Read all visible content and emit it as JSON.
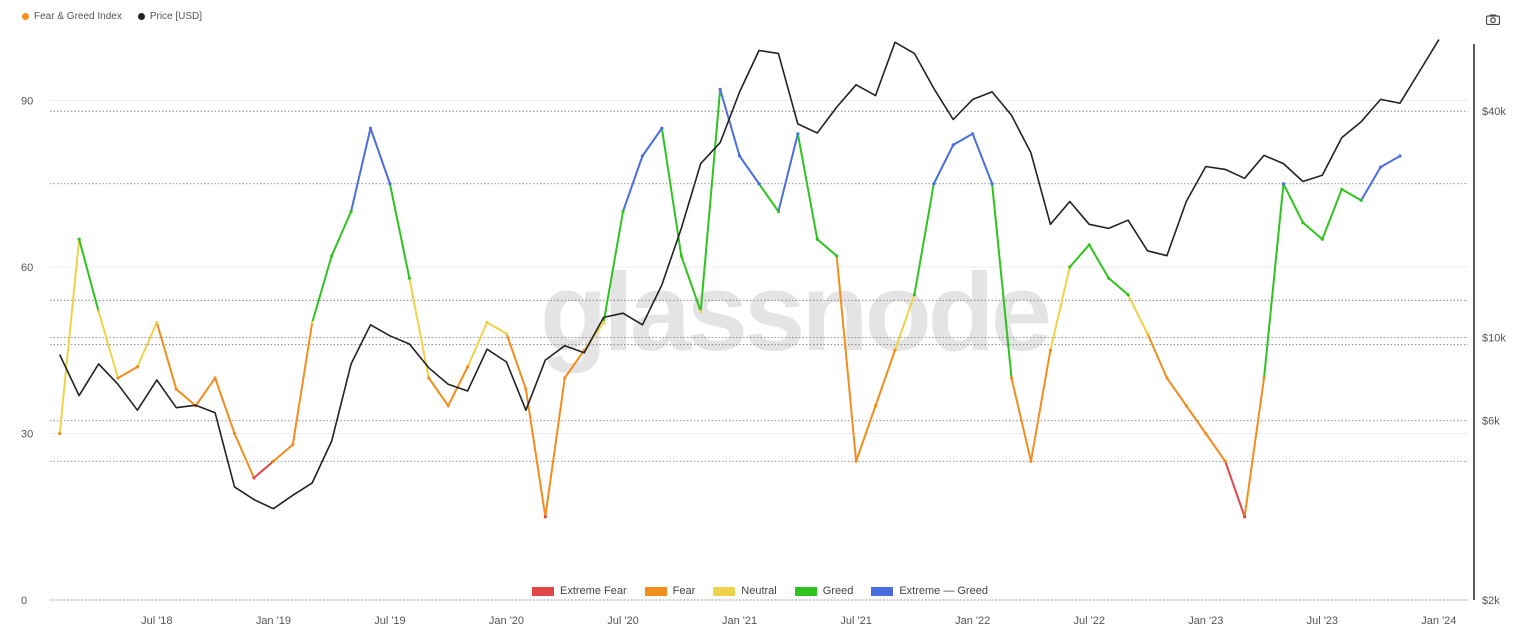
{
  "legend_top": [
    {
      "label": "Fear & Greed Index",
      "color": "#f28d1e"
    },
    {
      "label": "Price [USD]",
      "color": "#222222"
    }
  ],
  "legend_bottom": [
    {
      "label": "Extreme Fear",
      "color": "#e04848"
    },
    {
      "label": "Fear",
      "color": "#f28d1e"
    },
    {
      "label": "Neutral",
      "color": "#f0d24a"
    },
    {
      "label": "Greed",
      "color": "#2ec41f"
    },
    {
      "label": "Extreme — Greed",
      "color": "#4a6ee0"
    }
  ],
  "watermark": "glassnode",
  "chart_data": {
    "type": "line",
    "x_tick_labels": [
      "Jul '18",
      "Jan '19",
      "Jul '19",
      "Jan '20",
      "Jul '20",
      "Jan '21",
      "Jul '21",
      "Jan '22",
      "Jul '22",
      "Jan '23",
      "Jul '23",
      "Jan '24"
    ],
    "left_axis": {
      "ticks": [
        0,
        30,
        60,
        90
      ],
      "range": [
        0,
        100
      ]
    },
    "right_axis": {
      "scale": "log",
      "tick_labels": [
        "$2k",
        "$6k",
        "$10k",
        "$40k"
      ],
      "tick_values": [
        2000,
        6000,
        10000,
        40000
      ],
      "range": [
        2000,
        60000
      ]
    },
    "zones": [
      {
        "name": "Extreme Fear",
        "from": 0,
        "to": 25,
        "color": "#e04848"
      },
      {
        "name": "Fear",
        "from": 25,
        "to": 46,
        "color": "#f28d1e"
      },
      {
        "name": "Neutral",
        "from": 46,
        "to": 54,
        "color": "#f0d24a"
      },
      {
        "name": "Greed",
        "from": 54,
        "to": 75,
        "color": "#2ec41f"
      },
      {
        "name": "Extreme Greed",
        "from": 75,
        "to": 100,
        "color": "#4a6ee0"
      }
    ],
    "series": [
      {
        "name": "Fear & Greed Index",
        "x_start": "2018-02-01",
        "x_step_months": 1,
        "values": [
          30,
          65,
          52,
          40,
          42,
          50,
          38,
          35,
          40,
          30,
          22,
          25,
          28,
          50,
          62,
          70,
          85,
          75,
          58,
          40,
          35,
          42,
          50,
          48,
          38,
          15,
          40,
          45,
          50,
          70,
          80,
          85,
          62,
          52,
          92,
          80,
          75,
          70,
          84,
          65,
          62,
          25,
          35,
          45,
          55,
          75,
          82,
          84,
          75,
          40,
          25,
          45,
          60,
          64,
          58,
          55,
          48,
          40,
          35,
          30,
          25,
          15,
          40,
          75,
          68,
          65,
          74,
          72,
          78,
          80
        ],
        "color": "#f28d1e"
      },
      {
        "name": "Price [USD]",
        "x_start": "2018-02-01",
        "x_step_months": 1,
        "values": [
          9000,
          7000,
          8500,
          7500,
          6400,
          7700,
          6500,
          6600,
          6300,
          4000,
          3700,
          3500,
          3800,
          4100,
          5300,
          8500,
          10800,
          10100,
          9600,
          8300,
          7500,
          7200,
          9300,
          8600,
          6400,
          8700,
          9500,
          9100,
          11300,
          11600,
          10800,
          13800,
          19500,
          29000,
          33000,
          45000,
          58000,
          57000,
          37000,
          35000,
          41000,
          47000,
          44000,
          61000,
          57000,
          46000,
          38000,
          43000,
          45000,
          39000,
          31000,
          20000,
          23000,
          20000,
          19500,
          20500,
          17000,
          16500,
          23000,
          28500,
          28000,
          26500,
          30500,
          29000,
          26000,
          27000,
          34000,
          37500,
          43000,
          42000,
          51000,
          62000
        ]
      }
    ]
  }
}
